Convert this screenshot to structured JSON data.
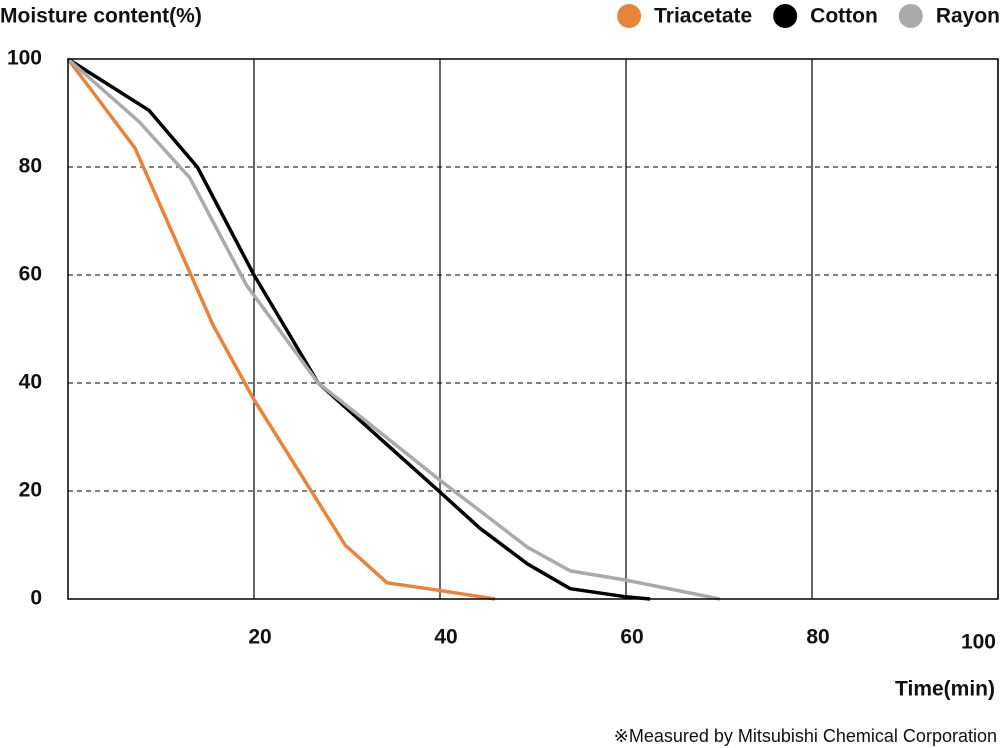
{
  "chart_data": {
    "type": "line",
    "title": "Moisture content(%)",
    "x_label": "Time(min)",
    "note": "※Measured by Mitsubishi Chemical Corporation",
    "xlim": [
      0,
      100
    ],
    "xticks": [
      20,
      40,
      60,
      80,
      100
    ],
    "ylim": [
      0,
      100
    ],
    "yticks": [
      0,
      20,
      40,
      60,
      80,
      100
    ],
    "grid": true,
    "legend": "top-right",
    "series": [
      {
        "name": "Triacetate",
        "color": "#e8833a",
        "x": [
          0,
          7.2,
          15.6,
          20,
          29.8,
          34.3,
          39.5,
          45.9
        ],
        "values": [
          100,
          83.5,
          50.7,
          36.9,
          10,
          3,
          1.7,
          0
        ]
      },
      {
        "name": "Cotton",
        "color": "#000000",
        "x": [
          0,
          8.7,
          13.9,
          20,
          26.9,
          40,
          44.3,
          49.4,
          54,
          60,
          62.6
        ],
        "values": [
          100,
          90.5,
          80,
          60,
          40,
          19.8,
          13.1,
          6.5,
          1.9,
          0.4,
          0
        ]
      },
      {
        "name": "Rayon",
        "color": "#aaaaaa",
        "x": [
          0,
          7.7,
          13.1,
          19.2,
          26.9,
          40,
          49.4,
          54,
          60,
          70.1
        ],
        "values": [
          100,
          88.3,
          78,
          58.1,
          40,
          22,
          9.6,
          5.2,
          3.5,
          0
        ]
      }
    ]
  }
}
